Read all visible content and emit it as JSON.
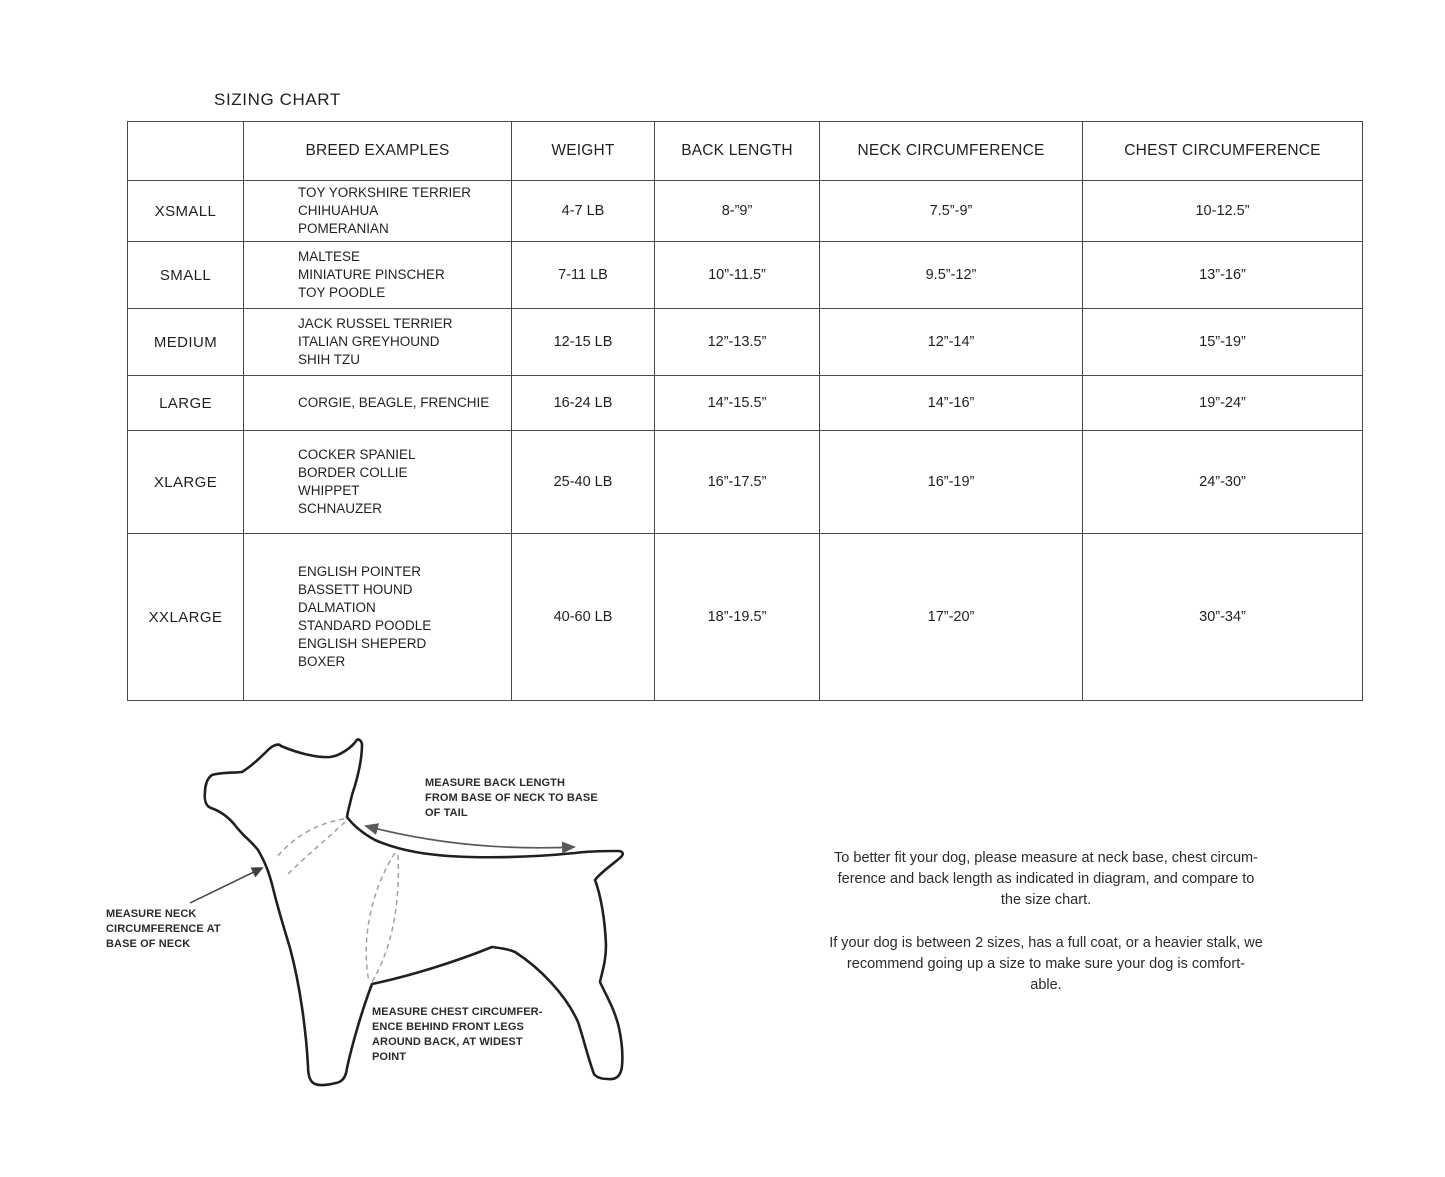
{
  "title": "SIZING CHART",
  "table": {
    "headers": [
      "",
      "BREED EXAMPLES",
      "WEIGHT",
      "BACK LENGTH",
      "NECK CIRCUMFERENCE",
      "CHEST CIRCUMFERENCE"
    ],
    "rows": [
      {
        "size": "XSMALL",
        "breeds": "TOY YORKSHIRE TERRIER\nCHIHUAHUA\nPOMERANIAN",
        "weight": "4-7 LB",
        "back_length": "8-”9”",
        "neck": "7.5”-9”",
        "chest": "10-12.5”"
      },
      {
        "size": "SMALL",
        "breeds": "MALTESE\nMINIATURE PINSCHER\nTOY POODLE",
        "weight": "7-11 LB",
        "back_length": "10”-11.5”",
        "neck": "9.5”-12”",
        "chest": "13”-16”"
      },
      {
        "size": "MEDIUM",
        "breeds": "JACK RUSSEL TERRIER\nITALIAN GREYHOUND\nSHIH TZU",
        "weight": "12-15 LB",
        "back_length": "12”-13.5”",
        "neck": "12”-14”",
        "chest": "15”-19”"
      },
      {
        "size": "LARGE",
        "breeds": "CORGIE, BEAGLE, FRENCHIE",
        "weight": "16-24 LB",
        "back_length": "14”-15.5”",
        "neck": "14”-16”",
        "chest": "19”-24”"
      },
      {
        "size": "XLARGE",
        "breeds": "COCKER SPANIEL\nBORDER COLLIE\nWHIPPET\nSCHNAUZER",
        "weight": "25-40 LB",
        "back_length": "16”-17.5”",
        "neck": "16”-19”",
        "chest": "24”-30”"
      },
      {
        "size": "XXLARGE",
        "breeds": "ENGLISH POINTER\nBASSETT HOUND\nDALMATION\nSTANDARD POODLE\nENGLISH SHEPERD\nBOXER",
        "weight": "40-60 LB",
        "back_length": "18”-19.5”",
        "neck": "17”-20”",
        "chest": "30”-34”"
      }
    ]
  },
  "diagram": {
    "back_length_label": "MEASURE BACK LENGTH\nFROM BASE OF NECK TO BASE\nOF TAIL",
    "neck_label": "MEASURE NECK\nCIRCUMFERENCE AT\nBASE OF NECK",
    "chest_label": "MEASURE CHEST CIRCUMFER-\nENCE BEHIND FRONT LEGS\nAROUND BACK, AT WIDEST\nPOINT"
  },
  "notes": {
    "paragraph1": "To better fit your dog, please measure at neck base, chest circum-\nference and back length as indicated in diagram, and compare to\nthe size chart.",
    "paragraph2": "If your dog is between 2 sizes, has a full coat, or a heavier stalk, we\nrecommend going up a size to make sure your dog is comfort-\nable."
  },
  "colors": {
    "ink": "#231f20",
    "table_border": "#4a4a4a",
    "arrow_gray": "#58595b",
    "dash_gray": "#a0a0a0"
  }
}
